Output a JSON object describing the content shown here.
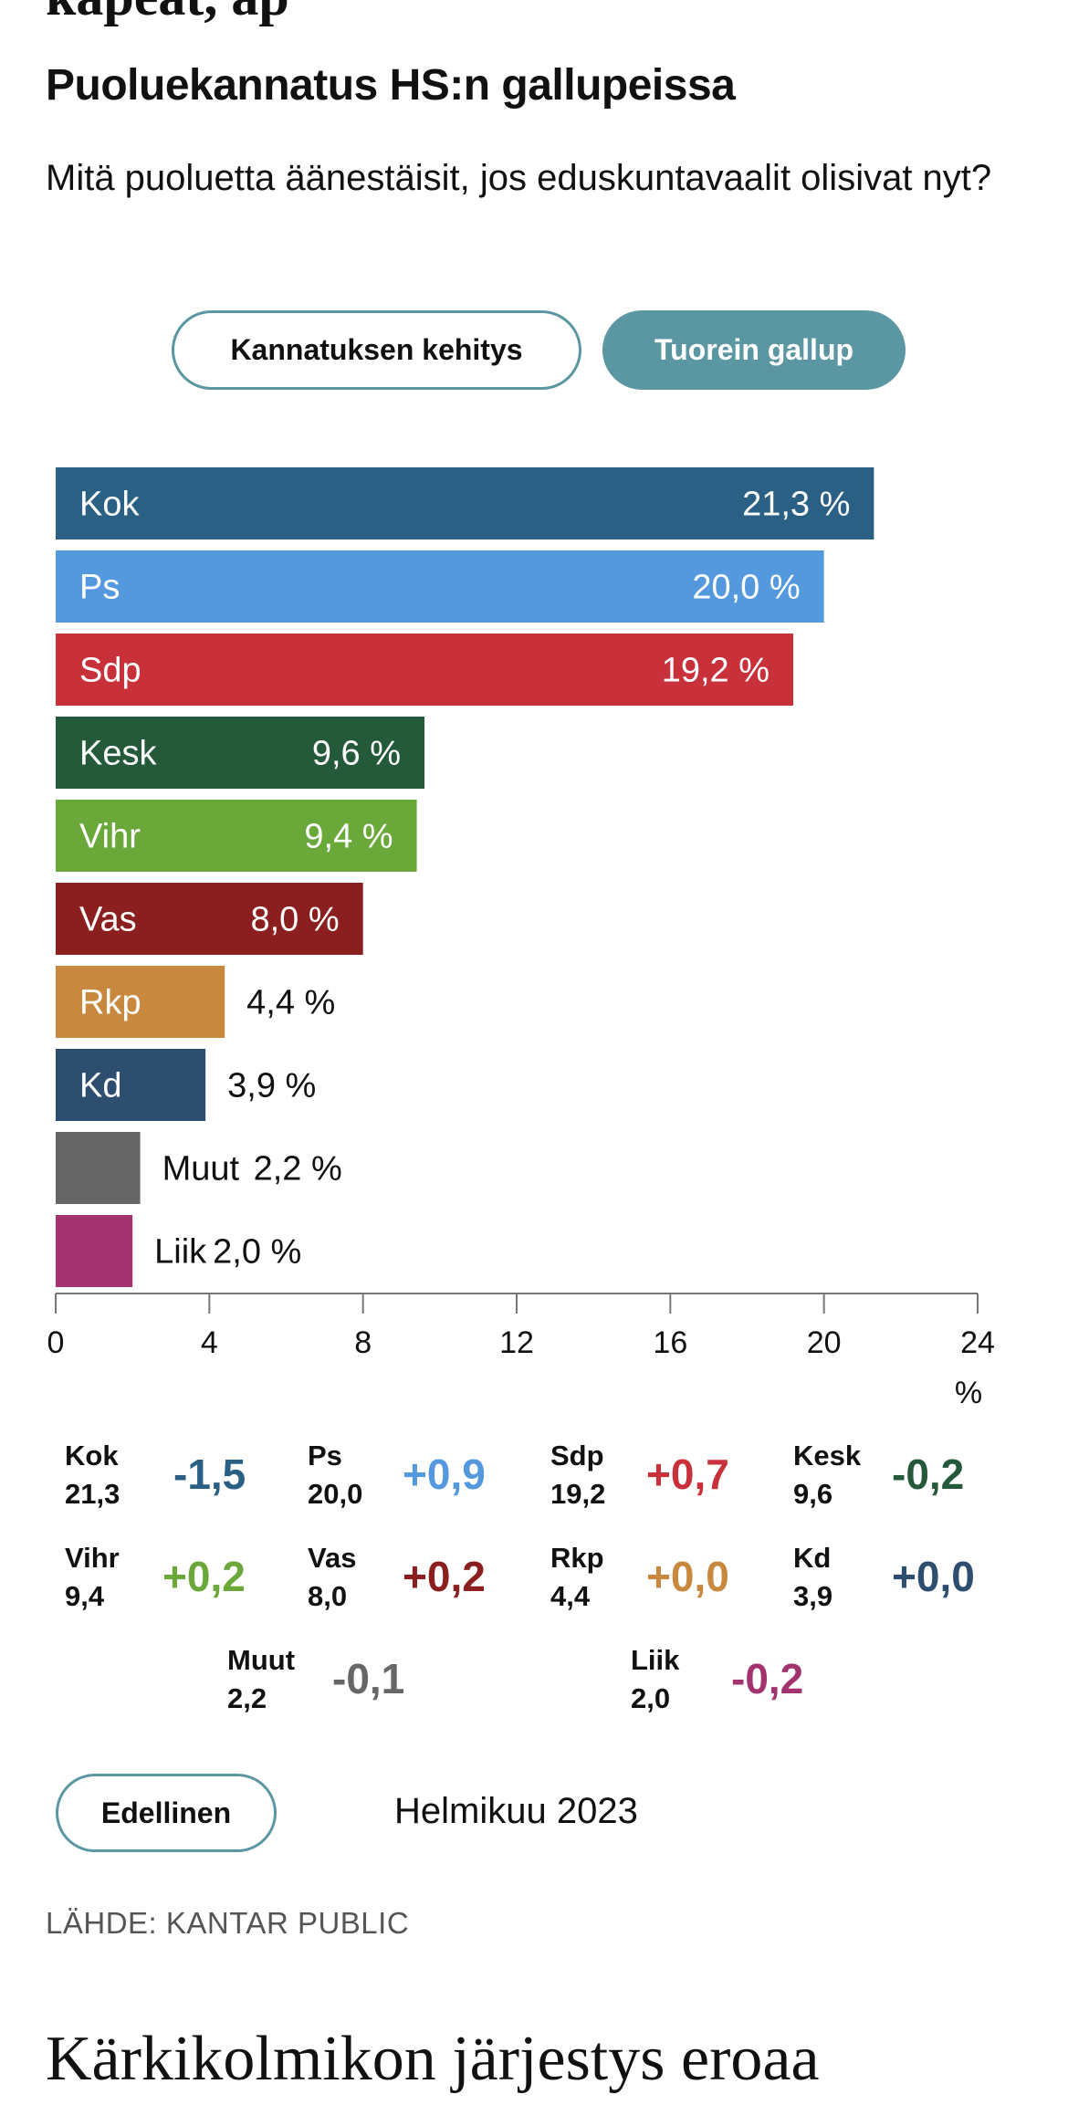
{
  "top_cut_text": "kapeat, ap",
  "title": "Puoluekannatus HS:n gallupeissa",
  "subtitle": "Mitä puoluetta äänestäisit, jos eduskuntavaalit olisivat nyt?",
  "toggle": {
    "history_label": "Kannatuksen kehitys",
    "latest_label": "Tuorein gallup",
    "active": "latest"
  },
  "chart_data": {
    "type": "bar",
    "orientation": "horizontal",
    "categories": [
      "Kok",
      "Ps",
      "Sdp",
      "Kesk",
      "Vihr",
      "Vas",
      "Rkp",
      "Kd",
      "Muut",
      "Liik"
    ],
    "values": [
      21.3,
      20.0,
      19.2,
      9.6,
      9.4,
      8.0,
      4.4,
      3.9,
      2.2,
      2.0
    ],
    "value_labels": [
      "21,3 %",
      "20,0 %",
      "19,2 %",
      "9,6 %",
      "9,4 %",
      "8,0 %",
      "4,4 %",
      "3,9 %",
      "2,2 %",
      "2,0 %"
    ],
    "colors": [
      "#2a6084",
      "#5499de",
      "#c8303a",
      "#24593a",
      "#6aa83a",
      "#8b1e1e",
      "#c8893f",
      "#2e4e70",
      "#666666",
      "#a3336f"
    ],
    "xlim": [
      0,
      24
    ],
    "xticks": [
      0,
      4,
      8,
      12,
      16,
      20,
      24
    ],
    "xtick_labels": [
      "0",
      "4",
      "8",
      "12",
      "16",
      "20",
      "24"
    ],
    "xlabel": "%",
    "grid": false
  },
  "changes": [
    {
      "party": "Kok",
      "value": "21,3",
      "delta": "-1,5",
      "color": "#2a6084"
    },
    {
      "party": "Ps",
      "value": "20,0",
      "delta": "+0,9",
      "color": "#5499de"
    },
    {
      "party": "Sdp",
      "value": "19,2",
      "delta": "+0,7",
      "color": "#c8303a"
    },
    {
      "party": "Kesk",
      "value": "9,6",
      "delta": "-0,2",
      "color": "#24593a"
    },
    {
      "party": "Vihr",
      "value": "9,4",
      "delta": "+0,2",
      "color": "#6aa83a"
    },
    {
      "party": "Vas",
      "value": "8,0",
      "delta": "+0,2",
      "color": "#8b1e1e"
    },
    {
      "party": "Rkp",
      "value": "4,4",
      "delta": "+0,0",
      "color": "#c8893f"
    },
    {
      "party": "Kd",
      "value": "3,9",
      "delta": "+0,0",
      "color": "#2e4e70"
    },
    {
      "party": "Muut",
      "value": "2,2",
      "delta": "-0,1",
      "color": "#666666"
    },
    {
      "party": "Liik",
      "value": "2,0",
      "delta": "-0,2",
      "color": "#a3336f"
    }
  ],
  "nav": {
    "previous_label": "Edellinen",
    "current_month": "Helmikuu 2023"
  },
  "source": "LÄHDE: KANTAR PUBLIC",
  "next_headline": "Kärkikolmikon järjestys eroaa"
}
